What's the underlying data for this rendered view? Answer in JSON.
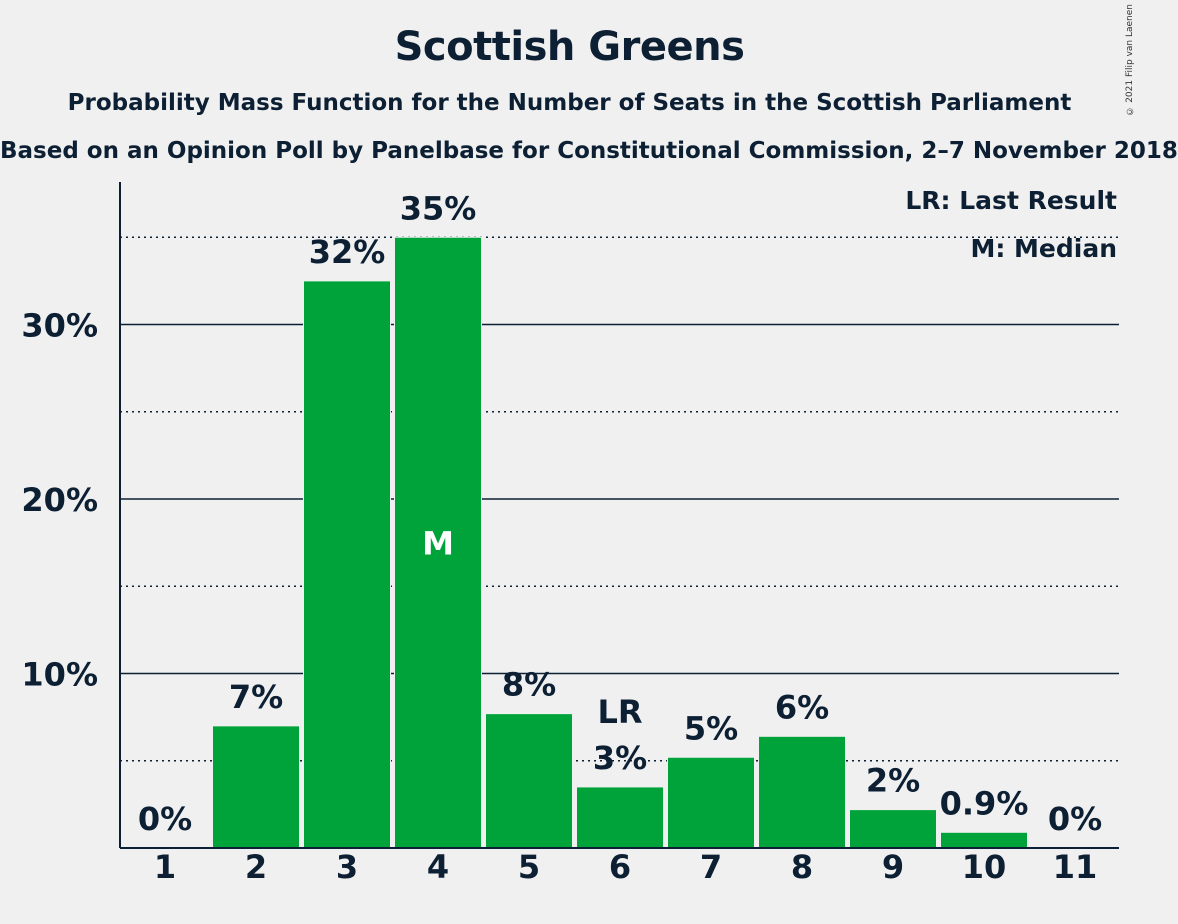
{
  "title": "Scottish Greens",
  "subtitle": "Probability Mass Function for the Number of Seats in the Scottish Parliament",
  "subtitle2": "Based on an Opinion Poll by Panelbase for Constitutional Commission, 2–7 November 2018",
  "copyright": "© 2021 Filip van Laenen",
  "legend": {
    "last_result": "LR: Last Result",
    "median": "M: Median"
  },
  "colors": {
    "bar": "#00a33a",
    "text": "#0c1f33",
    "background": "#f0f0f0"
  },
  "chart_data": {
    "type": "bar",
    "categories": [
      "1",
      "2",
      "3",
      "4",
      "5",
      "6",
      "7",
      "8",
      "9",
      "10",
      "11"
    ],
    "values": [
      0,
      7.0,
      32.5,
      35.0,
      7.7,
      3.5,
      5.2,
      6.4,
      2.2,
      0.9,
      0
    ],
    "data_labels": [
      "0%",
      "7%",
      "32%",
      "35%",
      "8%",
      "3%",
      "5%",
      "6%",
      "2%",
      "0.9%",
      "0%"
    ],
    "ylim": [
      0,
      38
    ],
    "yticks": [
      10,
      20,
      30
    ],
    "ytick_labels": [
      "10%",
      "20%",
      "30%"
    ],
    "minor_gridlines": [
      5,
      15,
      25,
      35
    ],
    "median_category": "4",
    "median_marker": "M",
    "last_result_category": "6",
    "last_result_marker": "LR",
    "legend_position": "top-right",
    "grid": true
  }
}
